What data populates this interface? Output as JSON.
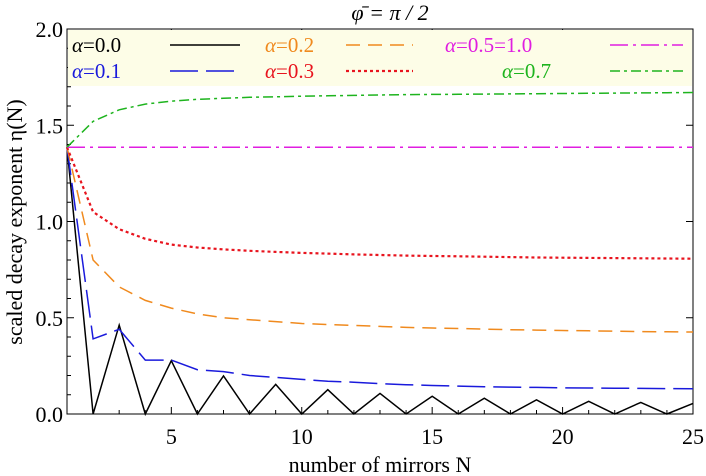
{
  "chart_data": {
    "type": "line",
    "title": "φ̄ = π / 2",
    "xlabel": "number of mirrors N",
    "ylabel": "scaled decay exponent η(N)",
    "xlim": [
      1,
      25
    ],
    "ylim": [
      0.0,
      2.0
    ],
    "xticks": [
      5,
      10,
      15,
      20,
      25
    ],
    "xtick_labels": [
      "5",
      "10",
      "15",
      "20",
      "25"
    ],
    "yticks": [
      0.0,
      0.5,
      1.0,
      1.5,
      2.0
    ],
    "ytick_labels": [
      "0.0",
      "0.5",
      "1.0",
      "1.5",
      "2.0"
    ],
    "grid": false,
    "legend_position": "top",
    "series": [
      {
        "name": "α=0.0",
        "label_symbol": "α",
        "label_value": "=0.0",
        "color": "#000000",
        "dash": "",
        "x": [
          1,
          2,
          3,
          4,
          5,
          6,
          7,
          8,
          9,
          10,
          11,
          12,
          13,
          14,
          15,
          16,
          17,
          18,
          19,
          20,
          21,
          22,
          23,
          24,
          25
        ],
        "values": [
          1.386,
          0.0,
          0.462,
          0.0,
          0.277,
          0.0,
          0.198,
          0.0,
          0.154,
          0.0,
          0.126,
          0.0,
          0.107,
          0.0,
          0.092,
          0.0,
          0.082,
          0.0,
          0.073,
          0.0,
          0.066,
          0.0,
          0.06,
          0.0,
          0.055
        ]
      },
      {
        "name": "α=0.1",
        "label_symbol": "α",
        "label_value": "=0.1",
        "color": "#1a1adc",
        "dash": "28,8",
        "x": [
          1,
          2,
          3,
          4,
          5,
          6,
          7,
          8,
          9,
          10,
          11,
          12,
          13,
          14,
          15,
          16,
          17,
          18,
          19,
          20,
          21,
          22,
          23,
          24,
          25
        ],
        "values": [
          1.386,
          0.39,
          0.44,
          0.28,
          0.28,
          0.23,
          0.22,
          0.2,
          0.19,
          0.18,
          0.17,
          0.165,
          0.158,
          0.152,
          0.148,
          0.145,
          0.142,
          0.14,
          0.138,
          0.136,
          0.135,
          0.134,
          0.133,
          0.132,
          0.131
        ]
      },
      {
        "name": "α=0.2",
        "label_symbol": "α",
        "label_value": "=0.2",
        "color": "#f08a1e",
        "dash": "14,8",
        "x": [
          1,
          2,
          3,
          4,
          5,
          6,
          7,
          8,
          9,
          10,
          11,
          12,
          13,
          14,
          15,
          16,
          17,
          18,
          19,
          20,
          21,
          22,
          23,
          24,
          25
        ],
        "values": [
          1.386,
          0.8,
          0.66,
          0.59,
          0.55,
          0.52,
          0.5,
          0.49,
          0.48,
          0.47,
          0.465,
          0.46,
          0.455,
          0.45,
          0.447,
          0.444,
          0.441,
          0.438,
          0.436,
          0.434,
          0.432,
          0.43,
          0.428,
          0.427,
          0.426
        ]
      },
      {
        "name": "α=0.3",
        "label_symbol": "α",
        "label_value": "=0.3",
        "color": "#e8141e",
        "dash": "3,3",
        "x": [
          1,
          2,
          3,
          4,
          5,
          6,
          7,
          8,
          9,
          10,
          11,
          12,
          13,
          14,
          15,
          16,
          17,
          18,
          19,
          20,
          21,
          22,
          23,
          24,
          25
        ],
        "values": [
          1.386,
          1.05,
          0.96,
          0.91,
          0.88,
          0.865,
          0.855,
          0.848,
          0.842,
          0.837,
          0.833,
          0.829,
          0.826,
          0.823,
          0.821,
          0.819,
          0.817,
          0.815,
          0.813,
          0.812,
          0.811,
          0.81,
          0.809,
          0.808,
          0.807
        ]
      },
      {
        "name": "α=0.5=1.0",
        "label_symbol": "α",
        "label_value": "=0.5=1.0",
        "color": "#e01ee0",
        "dash": "18,5,3,5",
        "x": [
          1,
          2,
          3,
          4,
          5,
          6,
          7,
          8,
          9,
          10,
          11,
          12,
          13,
          14,
          15,
          16,
          17,
          18,
          19,
          20,
          21,
          22,
          23,
          24,
          25
        ],
        "values": [
          1.386,
          1.386,
          1.386,
          1.386,
          1.386,
          1.386,
          1.386,
          1.386,
          1.386,
          1.386,
          1.386,
          1.386,
          1.386,
          1.386,
          1.386,
          1.386,
          1.386,
          1.386,
          1.386,
          1.386,
          1.386,
          1.386,
          1.386,
          1.386,
          1.386
        ]
      },
      {
        "name": "α=0.7",
        "label_symbol": "α",
        "label_value": "=0.7",
        "color": "#1eb41e",
        "dash": "10,4,3,4",
        "x": [
          1,
          2,
          3,
          4,
          5,
          6,
          7,
          8,
          9,
          10,
          11,
          12,
          13,
          14,
          15,
          16,
          17,
          18,
          19,
          20,
          21,
          22,
          23,
          24,
          25
        ],
        "values": [
          1.386,
          1.52,
          1.58,
          1.61,
          1.625,
          1.635,
          1.64,
          1.645,
          1.648,
          1.651,
          1.653,
          1.655,
          1.657,
          1.659,
          1.66,
          1.661,
          1.662,
          1.663,
          1.664,
          1.665,
          1.666,
          1.667,
          1.668,
          1.669,
          1.67
        ]
      }
    ]
  },
  "style": {
    "legend_background": "#fdfde7",
    "frame_color": "#000000"
  }
}
